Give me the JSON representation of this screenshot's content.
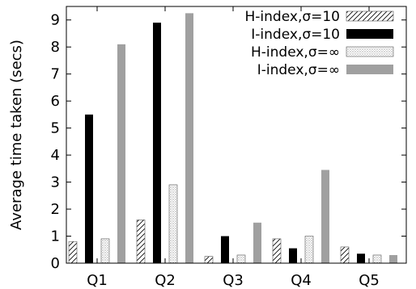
{
  "chart_data": {
    "type": "bar",
    "ylabel": "Average time taken (secs)",
    "xlabel": "",
    "ylim": [
      0,
      9.5
    ],
    "yticks": [
      0,
      1,
      2,
      3,
      4,
      5,
      6,
      7,
      8,
      9
    ],
    "categories": [
      "Q1",
      "Q2",
      "Q3",
      "Q4",
      "Q5"
    ],
    "legend_position": "top-right",
    "grid": false,
    "series": [
      {
        "name": "H-index,σ=10",
        "pattern": "hatch",
        "color": "#000000",
        "values": [
          0.8,
          1.6,
          0.25,
          0.9,
          0.6
        ]
      },
      {
        "name": "I-index,σ=10",
        "pattern": "solid",
        "color": "#000000",
        "values": [
          5.5,
          8.9,
          1.0,
          0.55,
          0.35
        ]
      },
      {
        "name": "H-index,σ=∞",
        "pattern": "dots",
        "color": "#888888",
        "values": [
          0.9,
          2.9,
          0.3,
          1.0,
          0.3
        ]
      },
      {
        "name": "I-index,σ=∞",
        "pattern": "solid",
        "color": "#a0a0a0",
        "values": [
          8.1,
          9.25,
          1.5,
          3.45,
          0.3
        ]
      }
    ]
  }
}
